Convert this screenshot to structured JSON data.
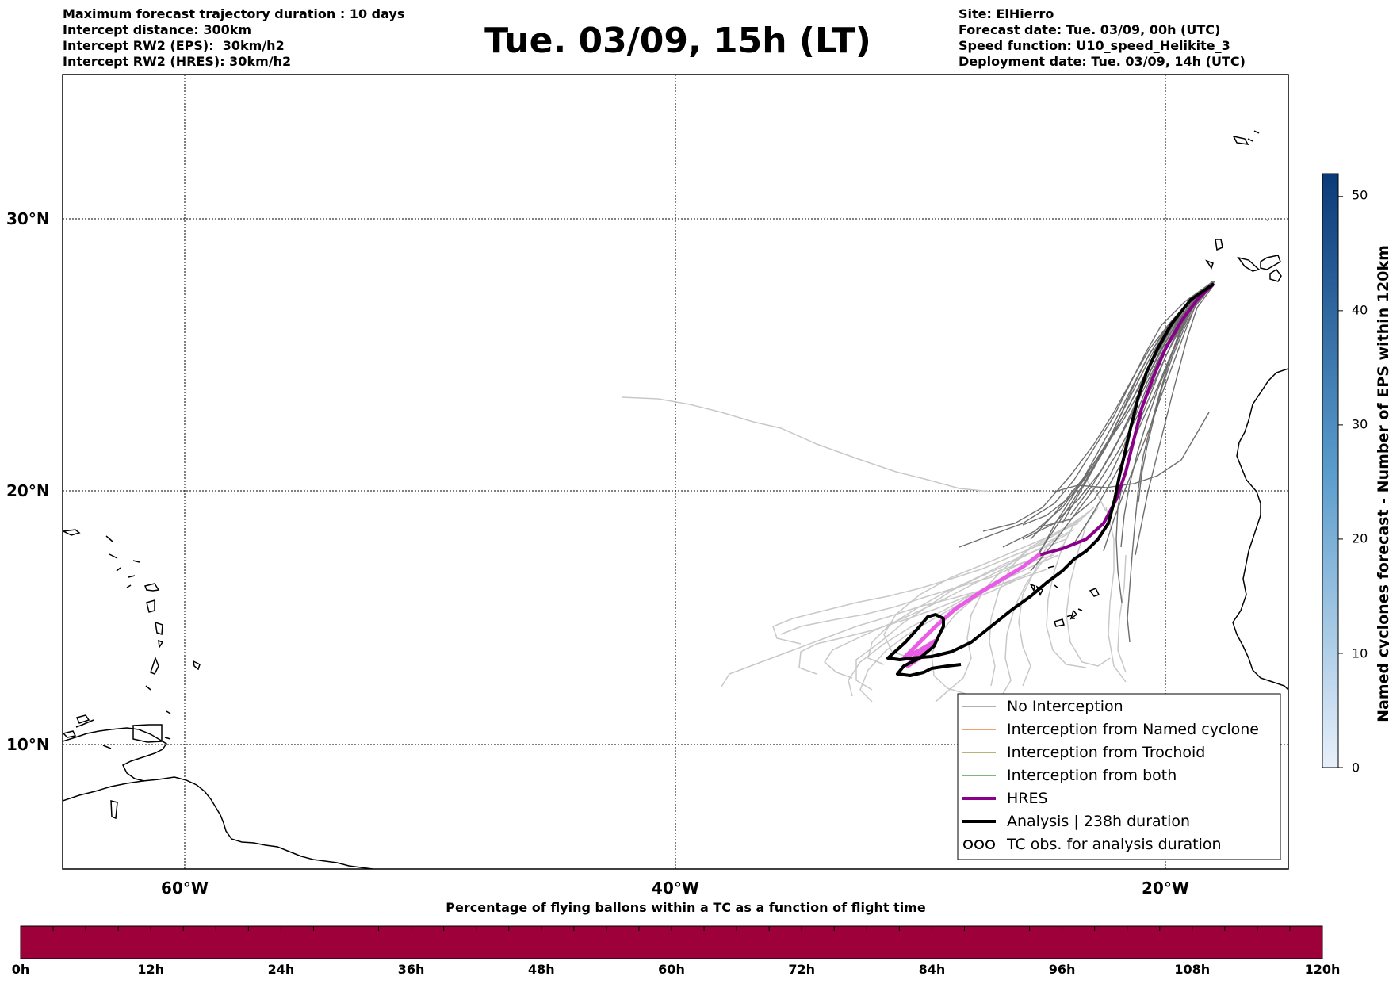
{
  "header": {
    "left_lines": [
      "Maximum forecast trajectory duration : 10 days",
      "Intercept distance: 300km",
      "Intercept RW2 (EPS):  30km/h2",
      "Intercept RW2 (HRES): 30km/h2"
    ],
    "title": "Tue. 03/09, 15h (LT)",
    "right_lines": [
      "Site: ElHierro",
      "Forecast date: Tue. 03/09, 00h (UTC)",
      "Speed function: U10_speed_Helikite_3",
      "Deployment date: Tue. 03/09, 14h (UTC)"
    ]
  },
  "map": {
    "lat_labels": [
      "30°N",
      "20°N",
      "10°N"
    ],
    "lon_labels": [
      "60°W",
      "40°W",
      "20°W"
    ],
    "legend": [
      {
        "label": "No Interception",
        "color": "#808080"
      },
      {
        "label": "Interception from Named cyclone",
        "color": "#e8641e"
      },
      {
        "label": "Interception from Trochoid",
        "color": "#8b8b1e"
      },
      {
        "label": "Interception from both",
        "color": "#2e8b2e"
      },
      {
        "label": "HRES",
        "color": "#8b008b"
      },
      {
        "label": "Analysis | 238h duration",
        "color": "#000000"
      },
      {
        "label": "TC obs. for analysis duration",
        "color": "#000000"
      }
    ]
  },
  "colorbar_right": {
    "label": "Named cyclones forecast - Number of EPS within 120km",
    "ticks": [
      "0",
      "10",
      "20",
      "30",
      "40",
      "50"
    ],
    "color_low": "#e8f0fa",
    "color_high": "#0b3a78"
  },
  "percentage_bar": {
    "title": "Percentage of flying ballons within a TC as a function of flight time",
    "ticks": [
      "0h",
      "12h",
      "24h",
      "36h",
      "48h",
      "60h",
      "72h",
      "84h",
      "96h",
      "108h",
      "120h"
    ],
    "fill_color": "#9e003a"
  }
}
